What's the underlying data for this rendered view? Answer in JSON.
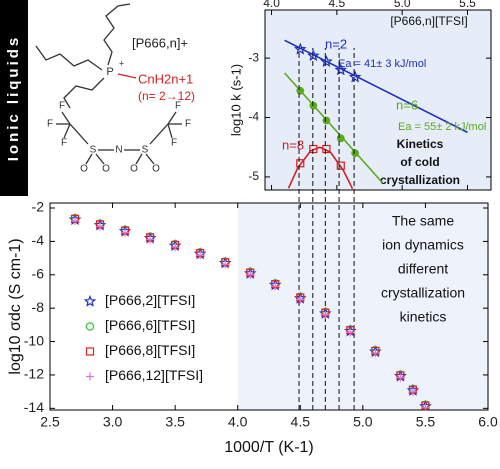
{
  "sidebar": "Ionic liquids",
  "structure": {
    "cation_label": "[P666,n]+",
    "phosphorus": "P",
    "charge": "+",
    "chain": "CnH2n+1",
    "range": "(n= 2→12)",
    "anion_atoms": [
      "F",
      "F",
      "F",
      "S",
      "O",
      "O",
      "N",
      "S",
      "O",
      "O",
      "F",
      "F",
      "F"
    ]
  },
  "chart_data": [
    {
      "type": "scatter",
      "title": "[P666,n][TFSI]",
      "y_label": "log10 k (s-1)",
      "annotations": [
        "Kinetics",
        "of cold",
        "crystallization"
      ],
      "xlim": [
        3.95,
        5.68
      ],
      "ylim": [
        -5.22,
        -2.19
      ],
      "xticks": [
        {
          "value": 4,
          "label": "4.0"
        },
        4.5,
        {
          "value": 5,
          "label": "5.0"
        },
        5.5
      ],
      "yticks": [
        -3,
        -4,
        -5
      ],
      "background": "#e6edf8",
      "series": [
        {
          "name": "n=2",
          "note": "Ea = 41± 3 kJ/mol",
          "color": "#1d2fbf",
          "marker": "star",
          "x": [
            4.22,
            4.32,
            4.42,
            4.53,
            4.64
          ],
          "values": [
            -2.85,
            -2.96,
            -3.06,
            -3.2,
            -3.32
          ],
          "fit_x": [
            4.1,
            5.5
          ],
          "fit_values": [
            -2.7,
            -4.25
          ]
        },
        {
          "name": "n=6",
          "note": "Ea = 55± 2 kJ/mol",
          "color": "#5aaa1e",
          "marker": "dot",
          "x": [
            4.22,
            4.32,
            4.42,
            4.53,
            4.64
          ],
          "values": [
            -3.55,
            -3.8,
            -4.05,
            -4.35,
            -4.6
          ],
          "fit_x": [
            4.1,
            4.85
          ],
          "fit_values": [
            -3.25,
            -5.1
          ]
        },
        {
          "name": "n=8",
          "color": "#d42020",
          "marker": "square",
          "x": [
            4.22,
            4.32,
            4.42,
            4.53
          ],
          "values": [
            -4.77,
            -4.53,
            -4.53,
            -4.81
          ],
          "fit_x": [
            4.13,
            4.2,
            4.3,
            4.37,
            4.45,
            4.55,
            4.62
          ],
          "fit_values": [
            -5.19,
            -4.85,
            -4.56,
            -4.5,
            -4.58,
            -4.89,
            -5.2
          ]
        }
      ]
    },
    {
      "type": "scatter",
      "x_label": "1000/T (K-1)",
      "y_label": "log10 σdc (S cm-1)",
      "annotations": [
        "The same",
        "ion dynamics",
        "different",
        "crystallization",
        "kinetics"
      ],
      "xlim": [
        2.5,
        6.0
      ],
      "ylim": [
        -14.1,
        -1.7
      ],
      "xticks": [
        2.5,
        {
          "value": 3,
          "label": "3.0"
        },
        3.5,
        {
          "value": 4,
          "label": "4.0"
        },
        4.5,
        {
          "value": 5,
          "label": "5.0"
        },
        5.5,
        {
          "value": 6,
          "label": "6.0"
        }
      ],
      "yticks": [
        -2,
        -4,
        -6,
        -8,
        -10,
        -12,
        -14
      ],
      "highlight_xlim": [
        4,
        6
      ],
      "highlight_color": "#eef2fb",
      "guide_lines_x": [
        4.49,
        4.6,
        4.7,
        4.81,
        4.93
      ],
      "legend": "center left",
      "x": [
        2.7,
        2.9,
        3.1,
        3.3,
        3.5,
        3.7,
        3.9,
        4.1,
        4.3,
        4.5,
        4.7,
        4.9,
        5.1,
        5.3,
        5.4,
        5.5
      ],
      "series": [
        {
          "name": "[P666,2][TFSI]",
          "color": "#1d2fcf",
          "marker": "star",
          "values": [
            -2.7,
            -3.03,
            -3.4,
            -3.81,
            -4.26,
            -4.75,
            -5.3,
            -5.92,
            -6.61,
            -7.41,
            -8.32,
            -9.37,
            -10.61,
            -12.08,
            -12.93,
            -13.88
          ]
        },
        {
          "name": "[P666,6][TFSI]",
          "color": "#33c633",
          "marker": "circle",
          "values": [
            -2.6,
            -2.93,
            -3.3,
            -3.71,
            -4.16,
            -4.65,
            -5.2,
            -5.82,
            -6.51,
            -7.31,
            -8.22,
            -9.27,
            -10.51,
            -11.98,
            -12.83,
            -13.78
          ]
        },
        {
          "name": "[P666,8][TFSI]",
          "color": "#dd2222",
          "marker": "square",
          "values": [
            -2.65,
            -2.98,
            -3.35,
            -3.76,
            -4.21,
            -4.7,
            -5.25,
            -5.87,
            -6.56,
            -7.36,
            -8.27,
            -9.32,
            -10.56,
            -12.03,
            -12.88,
            -13.83
          ]
        },
        {
          "name": "[P666,12][TFSI]",
          "color": "#e070e0",
          "marker": "plus",
          "values": [
            -2.78,
            -3.11,
            -3.48,
            -3.89,
            -4.34,
            -4.83,
            -5.38,
            -6.0,
            -6.69,
            -7.49,
            -8.4,
            -9.45,
            -10.69,
            -12.16,
            -13.01,
            -13.96
          ]
        }
      ]
    }
  ]
}
